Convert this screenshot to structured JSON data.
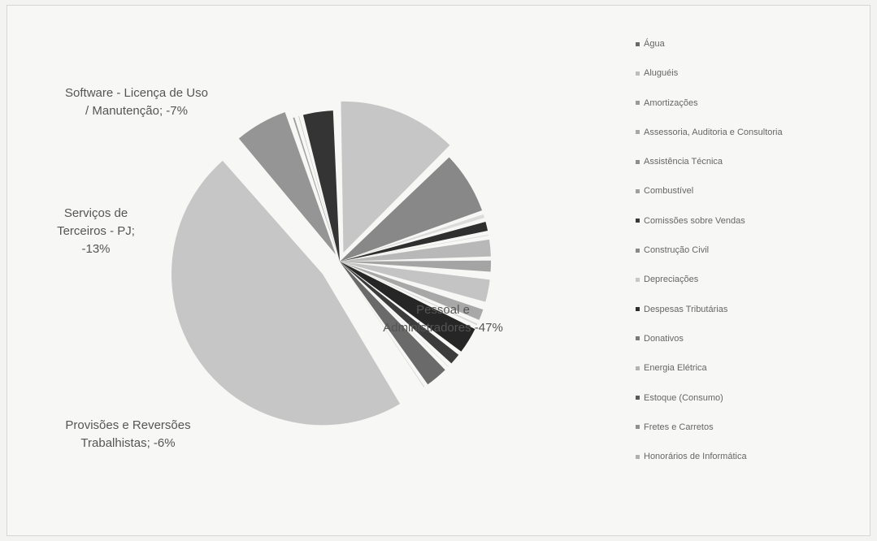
{
  "chart_data": {
    "type": "pie",
    "legend_position": "right",
    "legend": [
      {
        "name": "Água",
        "color": "#6a6a6a"
      },
      {
        "name": "Aluguéis",
        "color": "#bdbdbd"
      },
      {
        "name": "Amortizações",
        "color": "#9a9a9a"
      },
      {
        "name": "Assessoria, Auditoria e Consultoria",
        "color": "#a8a8a8"
      },
      {
        "name": "Assistência Técnica",
        "color": "#8e8e8e"
      },
      {
        "name": "Combustível",
        "color": "#a0a0a0"
      },
      {
        "name": "Comissões sobre Vendas",
        "color": "#3a3a3a"
      },
      {
        "name": "Construção Civil",
        "color": "#8a8a8a"
      },
      {
        "name": "Depreciações",
        "color": "#c8c8c8"
      },
      {
        "name": "Despesas Tributárias",
        "color": "#2e2e2e"
      },
      {
        "name": "Donativos",
        "color": "#7a7a7a"
      },
      {
        "name": "Energia Elétrica",
        "color": "#b4b4b4"
      },
      {
        "name": "Estoque (Consumo)",
        "color": "#5a5a5a"
      },
      {
        "name": "Fretes e Carretos",
        "color": "#909090"
      },
      {
        "name": "Honorários de Informática",
        "color": "#b0b0b0"
      }
    ],
    "slices": [
      {
        "value": 0.4,
        "color": "#e4e4e4"
      },
      {
        "value": 47,
        "color": "#c6c6c6",
        "label": "Pessoal e Administradores -47%"
      },
      {
        "value": 6,
        "color": "#959595",
        "label": "Provisões e Reversões Trabalhistas; -6%"
      },
      {
        "value": 0.6,
        "color": "#9e9e9e"
      },
      {
        "value": 0.5,
        "color": "#bbbbbb"
      },
      {
        "value": 3.6,
        "color": "#343434"
      },
      {
        "value": 13,
        "color": "#c6c6c6",
        "label": "Serviços de Terceiros - PJ; -13%"
      },
      {
        "value": 7,
        "color": "#888888",
        "label": "Software - Licença de Uso / Manutenção; -7%"
      },
      {
        "value": 0.8,
        "color": "#dcdcdc"
      },
      {
        "value": 1.4,
        "color": "#2f2f2f"
      },
      {
        "value": 0.5,
        "color": "#d4d4d4"
      },
      {
        "value": 2.2,
        "color": "#b8b8b8"
      },
      {
        "value": 1.6,
        "color": "#a4a4a4"
      },
      {
        "value": 0.4,
        "color": "#e0e0e0"
      },
      {
        "value": 2.8,
        "color": "#c4c4c4"
      },
      {
        "value": 0.4,
        "color": "#e0e0e0"
      },
      {
        "value": 1.6,
        "color": "#a8a8a8"
      },
      {
        "value": 0.6,
        "color": "#d8d8d8"
      },
      {
        "value": 3.2,
        "color": "#262626"
      },
      {
        "value": 1.6,
        "color": "#3c3c3c"
      },
      {
        "value": 0.5,
        "color": "#dddddd"
      },
      {
        "value": 2.8,
        "color": "#6a6a6a"
      },
      {
        "value": 0.5,
        "color": "#cccccc"
      }
    ]
  }
}
